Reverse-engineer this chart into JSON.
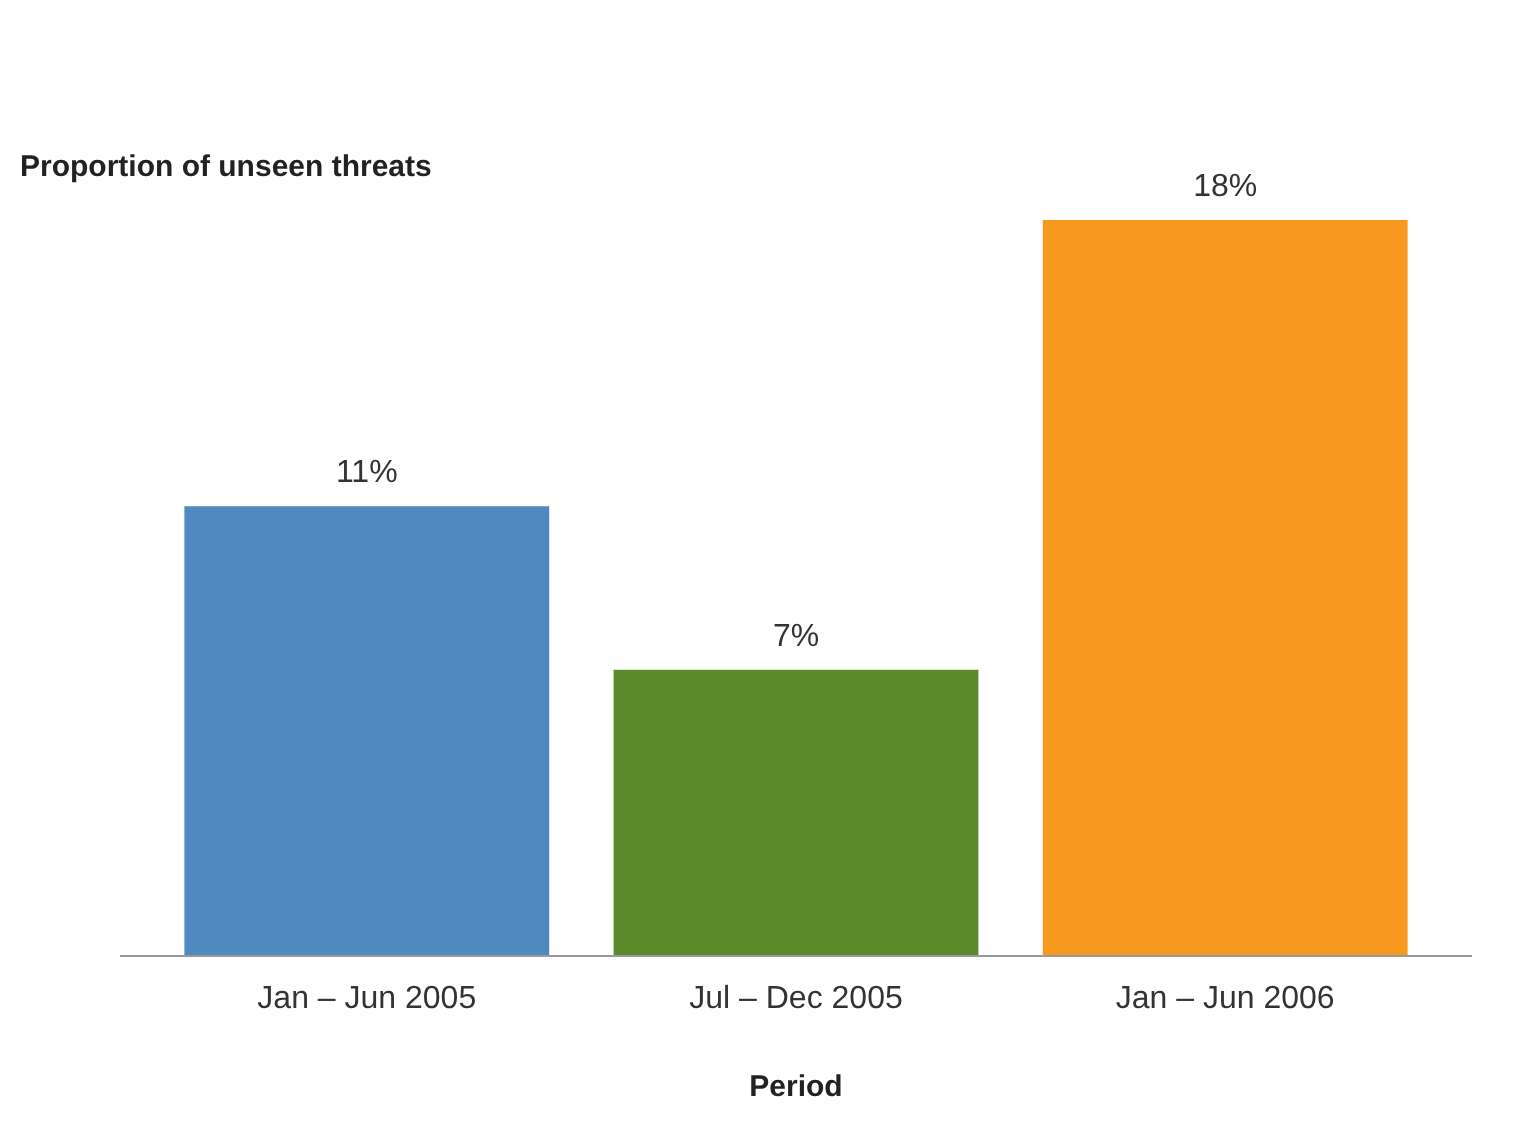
{
  "chart_data": {
    "type": "bar",
    "ylabel": "Proportion of unseen threats",
    "xlabel": "Period",
    "categories": [
      "Jan – Jun 2005",
      "Jul – Dec 2005",
      "Jan – Jun 2006"
    ],
    "values": [
      11,
      7,
      18
    ],
    "colors": [
      "#4f8abf",
      "#5c8a2a",
      "#f7981f"
    ],
    "value_labels": [
      "11%",
      "7%",
      "18%"
    ]
  }
}
